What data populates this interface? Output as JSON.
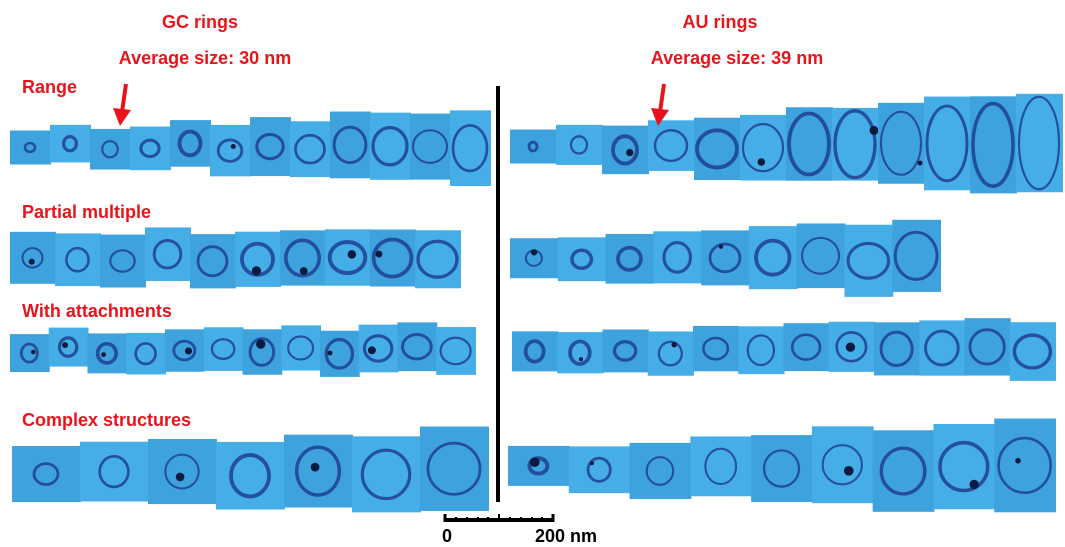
{
  "left_panel": {
    "title": "GC rings",
    "subtitle": "Average size: 30 nm"
  },
  "right_panel": {
    "title": "AU rings",
    "subtitle": "Average size: 39 nm"
  },
  "row_labels": [
    "Range",
    "Partial multiple",
    "With attachments",
    "Complex structures"
  ],
  "scale_bar": {
    "start": "0",
    "end": "200 nm"
  }
}
